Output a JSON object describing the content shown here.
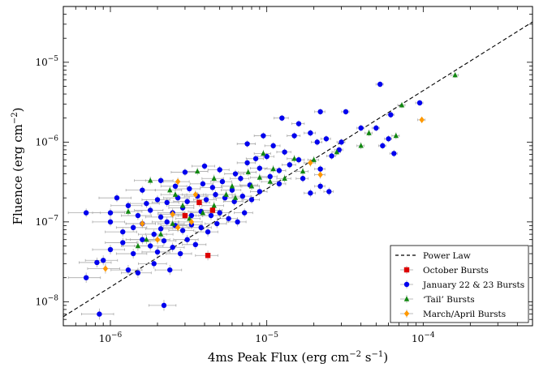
{
  "chart_data": {
    "type": "scatter",
    "xscale": "log",
    "yscale": "log",
    "xlim": [
      5e-07,
      0.0005
    ],
    "ylim": [
      5e-09,
      5e-05
    ],
    "xlabel": {
      "main": "4ms Peak Flux (erg cm",
      "sup1": "−2",
      "mid": " s",
      "sup2": "−1",
      "end": ")"
    },
    "ylabel": {
      "main": "Fluence (erg cm",
      "sup": "−2",
      "end": ")"
    },
    "x_ticks": [
      {
        "value": 1e-06,
        "base": "10",
        "exp": "−6"
      },
      {
        "value": 1e-05,
        "base": "10",
        "exp": "−5"
      },
      {
        "value": 0.0001,
        "base": "10",
        "exp": "−4"
      }
    ],
    "y_ticks": [
      {
        "value": 1e-08,
        "base": "10",
        "exp": "−8"
      },
      {
        "value": 1e-07,
        "base": "10",
        "exp": "−7"
      },
      {
        "value": 1e-06,
        "base": "10",
        "exp": "−6"
      },
      {
        "value": 1e-05,
        "base": "10",
        "exp": "−5"
      }
    ],
    "legend_position": "lower-right",
    "power_law": {
      "label": "Power Law",
      "color": "#000000",
      "points": [
        [
          5e-07,
          6.5e-09
        ],
        [
          0.0005,
          3.2e-05
        ]
      ]
    },
    "series": [
      {
        "name": "October Bursts",
        "color": "#dd0000",
        "marker": "square",
        "points": [
          [
            3.7e-06,
            1.75e-07
          ],
          [
            4.2e-06,
            3.8e-08
          ],
          [
            4.5e-06,
            1.4e-07
          ],
          [
            3e-06,
            1.2e-07
          ]
        ]
      },
      {
        "name": "January 22 & 23 Bursts",
        "color": "#0000ee",
        "marker": "circle",
        "points": [
          [
            8.5e-07,
            7e-09
          ],
          [
            2.2e-06,
            9e-09
          ],
          [
            7e-07,
            2e-08
          ],
          [
            9e-07,
            3.3e-08
          ],
          [
            8.2e-07,
            3.1e-08
          ],
          [
            1.5e-06,
            2.3e-08
          ],
          [
            1.3e-06,
            2.5e-08
          ],
          [
            1.9e-06,
            3e-08
          ],
          [
            2.4e-06,
            2.5e-08
          ],
          [
            1e-06,
            4.5e-08
          ],
          [
            1.2e-06,
            5.5e-08
          ],
          [
            1.4e-06,
            4e-08
          ],
          [
            1.6e-06,
            6e-08
          ],
          [
            1.8e-06,
            5e-08
          ],
          [
            2e-06,
            4.2e-08
          ],
          [
            2.2e-06,
            5.8e-08
          ],
          [
            2.5e-06,
            4.8e-08
          ],
          [
            2.8e-06,
            4e-08
          ],
          [
            3.1e-06,
            6e-08
          ],
          [
            3.5e-06,
            5.2e-08
          ],
          [
            1.2e-06,
            7.5e-08
          ],
          [
            1.4e-06,
            8.5e-08
          ],
          [
            1.6e-06,
            9.5e-08
          ],
          [
            1.9e-06,
            7e-08
          ],
          [
            2.1e-06,
            8.2e-08
          ],
          [
            2.3e-06,
            1e-07
          ],
          [
            2.6e-06,
            9e-08
          ],
          [
            2.9e-06,
            7.8e-08
          ],
          [
            3.3e-06,
            9.2e-08
          ],
          [
            3.8e-06,
            8.5e-08
          ],
          [
            4.2e-06,
            7.5e-08
          ],
          [
            4.8e-06,
            9.5e-08
          ],
          [
            1.5e-06,
            1.2e-07
          ],
          [
            1.8e-06,
            1.4e-07
          ],
          [
            2.1e-06,
            1.15e-07
          ],
          [
            2.5e-06,
            1.3e-07
          ],
          [
            2.9e-06,
            1.5e-07
          ],
          [
            3.3e-06,
            1.2e-07
          ],
          [
            3.8e-06,
            1.35e-07
          ],
          [
            4.4e-06,
            1.2e-07
          ],
          [
            5e-06,
            1.3e-07
          ],
          [
            5.7e-06,
            1.1e-07
          ],
          [
            6.5e-06,
            1e-07
          ],
          [
            7.2e-06,
            1.3e-07
          ],
          [
            1.7e-06,
            1.7e-07
          ],
          [
            2e-06,
            1.9e-07
          ],
          [
            2.3e-06,
            1.75e-07
          ],
          [
            2.7e-06,
            2e-07
          ],
          [
            3.1e-06,
            1.8e-07
          ],
          [
            3.6e-06,
            2.1e-07
          ],
          [
            4.1e-06,
            1.9e-07
          ],
          [
            4.7e-06,
            2.2e-07
          ],
          [
            5.4e-06,
            2e-07
          ],
          [
            6.2e-06,
            1.8e-07
          ],
          [
            7e-06,
            2.1e-07
          ],
          [
            8e-06,
            1.9e-07
          ],
          [
            1.6e-06,
            2.5e-07
          ],
          [
            2.1e-06,
            3.3e-07
          ],
          [
            2.6e-06,
            2.8e-07
          ],
          [
            3.2e-06,
            2.6e-07
          ],
          [
            3.9e-06,
            3e-07
          ],
          [
            4.5e-06,
            2.7e-07
          ],
          [
            5.2e-06,
            3.2e-07
          ],
          [
            6e-06,
            2.5e-07
          ],
          [
            6.8e-06,
            3.5e-07
          ],
          [
            7.8e-06,
            2.9e-07
          ],
          [
            9e-06,
            2.4e-07
          ],
          [
            3e-06,
            4.2e-07
          ],
          [
            4e-06,
            5e-07
          ],
          [
            5e-06,
            4.5e-07
          ],
          [
            6.3e-06,
            4e-07
          ],
          [
            7.5e-06,
            5.5e-07
          ],
          [
            9e-06,
            4.7e-07
          ],
          [
            1.05e-05,
            3.7e-07
          ],
          [
            1.2e-05,
            4.4e-07
          ],
          [
            8.5e-06,
            6.2e-07
          ],
          [
            1e-05,
            6.6e-07
          ],
          [
            1.2e-05,
            3e-07
          ],
          [
            1.4e-05,
            5.2e-07
          ],
          [
            1.6e-05,
            6e-07
          ],
          [
            1.1e-05,
            9e-07
          ],
          [
            1.3e-05,
            7.5e-07
          ],
          [
            1.5e-05,
            1.2e-06
          ],
          [
            1.6e-05,
            1.7e-06
          ],
          [
            1.9e-05,
            1.3e-06
          ],
          [
            1.9e-05,
            2.3e-07
          ],
          [
            2.2e-05,
            2.8e-07
          ],
          [
            2.5e-05,
            2.4e-07
          ],
          [
            2.2e-05,
            4.6e-07
          ],
          [
            2.6e-05,
            6.7e-07
          ],
          [
            2.9e-05,
            8e-07
          ],
          [
            2.1e-05,
            1e-06
          ],
          [
            2.4e-05,
            1.1e-06
          ],
          [
            2.2e-05,
            2.4e-06
          ],
          [
            3.2e-05,
            2.4e-06
          ],
          [
            5.3e-05,
            5.3e-06
          ],
          [
            5e-05,
            1.5e-06
          ],
          [
            6e-05,
            1.1e-06
          ],
          [
            6.5e-05,
            7.2e-07
          ],
          [
            6.2e-05,
            2.2e-06
          ],
          [
            5.5e-05,
            9e-07
          ],
          [
            9.5e-05,
            3.1e-06
          ],
          [
            4e-05,
            1.5e-06
          ],
          [
            3e-05,
            1e-06
          ],
          [
            1.7e-05,
            3.5e-07
          ],
          [
            7.5e-06,
            9.5e-07
          ],
          [
            9.5e-06,
            1.2e-06
          ],
          [
            1.25e-05,
            2e-06
          ],
          [
            1e-06,
            1e-07
          ],
          [
            1.1e-06,
            2e-07
          ],
          [
            1.3e-06,
            1.6e-07
          ],
          [
            7e-07,
            1.3e-07
          ],
          [
            1e-06,
            1.3e-07
          ]
        ]
      },
      {
        "name": "‘Tail’ Bursts",
        "color": "#118811",
        "marker": "triangle",
        "points": [
          [
            0.00016,
            6.9e-06
          ],
          [
            7.3e-05,
            2.9e-06
          ],
          [
            6.7e-05,
            1.2e-06
          ],
          [
            4.5e-05,
            1.3e-06
          ],
          [
            4e-05,
            9e-07
          ],
          [
            2.8e-05,
            7.5e-07
          ],
          [
            2e-05,
            6e-07
          ],
          [
            1.7e-05,
            4.3e-07
          ],
          [
            1.3e-05,
            3.5e-07
          ],
          [
            1.1e-05,
            4.6e-07
          ],
          [
            9e-06,
            3.6e-07
          ],
          [
            8e-06,
            2.8e-07
          ],
          [
            6.3e-06,
            2e-07
          ],
          [
            5.5e-06,
            2.2e-07
          ],
          [
            4.6e-06,
            1.6e-07
          ],
          [
            3.9e-06,
            1.3e-07
          ],
          [
            3.2e-06,
            1.1e-07
          ],
          [
            2.5e-06,
            9.5e-08
          ],
          [
            2.1e-06,
            7e-08
          ],
          [
            1.7e-06,
            6e-08
          ],
          [
            1.5e-06,
            5e-08
          ],
          [
            1.8e-06,
            3.3e-07
          ],
          [
            2.4e-06,
            2.5e-07
          ],
          [
            2.6e-06,
            2.2e-07
          ],
          [
            3.6e-06,
            4.3e-07
          ],
          [
            4.6e-06,
            3.5e-07
          ],
          [
            6e-06,
            2.8e-07
          ],
          [
            7.6e-06,
            4.2e-07
          ],
          [
            1.05e-05,
            3.2e-07
          ],
          [
            1.5e-05,
            6.2e-07
          ],
          [
            1.3e-06,
            1.35e-07
          ],
          [
            2.9e-06,
            1.6e-07
          ],
          [
            9.5e-06,
            7.2e-07
          ]
        ]
      },
      {
        "name": "March/April Bursts",
        "color": "#ff9900",
        "marker": "diamond",
        "points": [
          [
            9.8e-05,
            1.9e-06
          ],
          [
            2.2e-05,
            3.9e-07
          ],
          [
            1.9e-05,
            5.5e-07
          ],
          [
            3.5e-06,
            2.2e-07
          ],
          [
            2.7e-06,
            3.2e-07
          ],
          [
            2.5e-06,
            1.25e-07
          ],
          [
            2.7e-06,
            8.5e-08
          ],
          [
            2e-06,
            6e-08
          ],
          [
            9.3e-07,
            2.6e-08
          ],
          [
            3.3e-06,
            1e-07
          ],
          [
            1.6e-06,
            9.5e-08
          ]
        ]
      }
    ]
  }
}
